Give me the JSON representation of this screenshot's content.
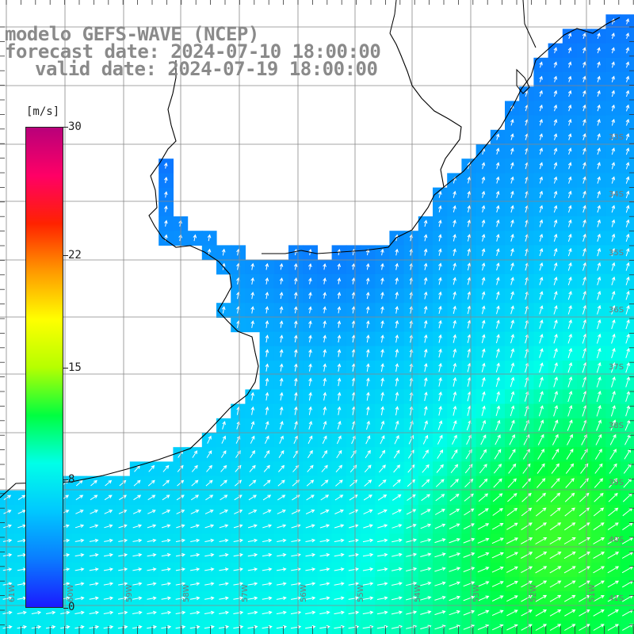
{
  "titles": {
    "line1": "modelo GEFS-WAVE (NCEP)",
    "line2": "forecast date: 2024-07-10 18:00:00",
    "line3": "valid date: 2024-07-19 18:00:00"
  },
  "colorbar": {
    "unit": "[m/s]",
    "ticks": [
      "30",
      "22",
      "15",
      "8",
      "0"
    ],
    "tick_values": [
      30,
      22,
      15,
      8,
      0
    ],
    "range": [
      0,
      30
    ],
    "colors": [
      "#1a1aff",
      "#0a7cff",
      "#00c8ff",
      "#00ffe8",
      "#00ff40",
      "#b6ff00",
      "#ffff00",
      "#ff9900",
      "#ff2200",
      "#ff0066",
      "#b8007a"
    ]
  },
  "map": {
    "lon_labels": [
      "61W",
      "60W",
      "59W",
      "58W",
      "57W",
      "56W",
      "55W",
      "54W",
      "53W",
      "52W",
      "51W"
    ],
    "lat_labels": [
      "33S",
      "34S",
      "35S",
      "36S",
      "37S",
      "38S",
      "39S",
      "40S",
      "41S"
    ],
    "colors": {
      "land": "#ffffff",
      "coast": "#000000",
      "grid": "#888888",
      "arrow": "#ffffff"
    }
  }
}
